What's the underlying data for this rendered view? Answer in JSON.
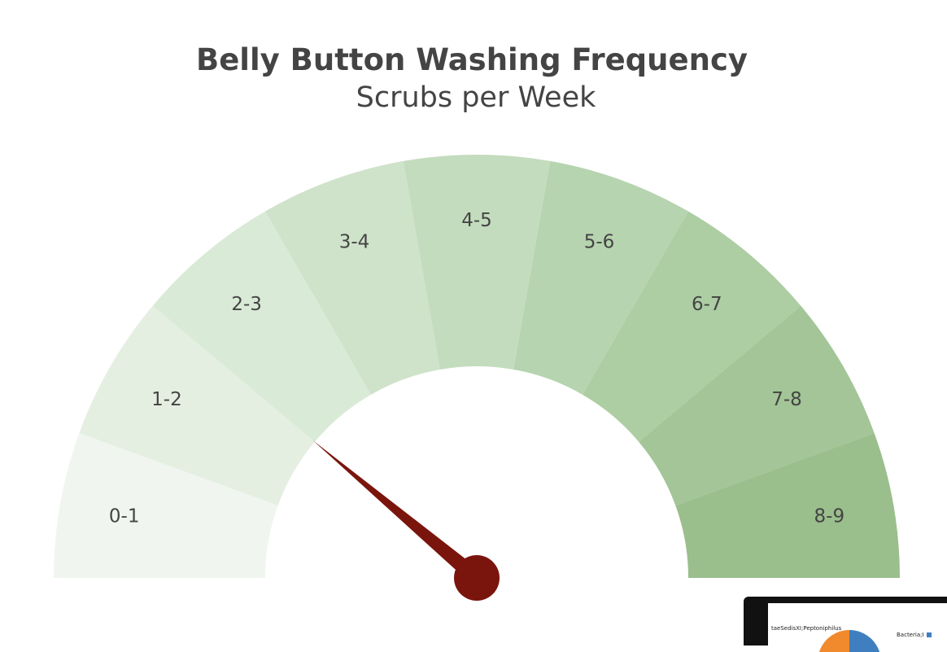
{
  "chart_data": {
    "type": "gauge",
    "title": "Belly Button Washing Frequency",
    "subtitle": "Scrubs per Week",
    "range": [
      0,
      9
    ],
    "value": 2,
    "steps": [
      {
        "label": "0-1",
        "range": [
          0,
          1
        ],
        "color": "#f0f6ef"
      },
      {
        "label": "1-2",
        "range": [
          1,
          2
        ],
        "color": "#e4efe2"
      },
      {
        "label": "2-3",
        "range": [
          2,
          3
        ],
        "color": "#d9ebd6"
      },
      {
        "label": "3-4",
        "range": [
          3,
          4
        ],
        "color": "#cfe2ca"
      },
      {
        "label": "4-5",
        "range": [
          4,
          5
        ],
        "color": "#c4dcbe"
      },
      {
        "label": "5-6",
        "range": [
          5,
          6
        ],
        "color": "#b6d4af"
      },
      {
        "label": "6-7",
        "range": [
          6,
          7
        ],
        "color": "#adcda3"
      },
      {
        "label": "7-8",
        "range": [
          7,
          8
        ],
        "color": "#a3c597"
      },
      {
        "label": "8-9",
        "range": [
          8,
          9
        ],
        "color": "#9bbe8d"
      }
    ],
    "needle_color": "#7a150d"
  },
  "thumbnail": {
    "label_a": "taeSedisXI;Peptoniphilus",
    "label_b": "Bacteria;I",
    "pie_colors": [
      "#3f7fbf",
      "#f08a2c"
    ],
    "bezel_color": "#111111"
  }
}
